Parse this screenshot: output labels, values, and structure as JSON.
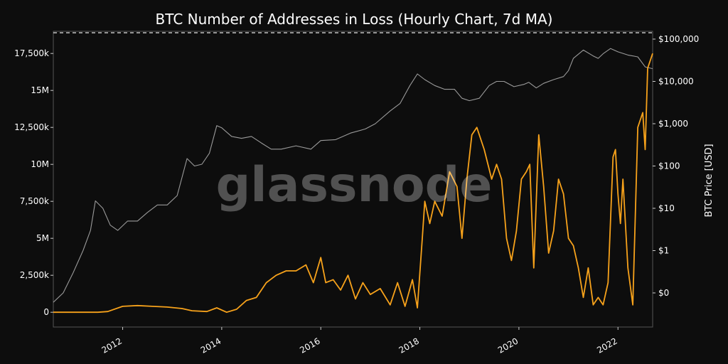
{
  "chart_data": {
    "type": "line",
    "title": "BTC Number of Addresses in Loss (Hourly Chart, 7d MA)",
    "watermark": "glassnode",
    "x_ticks": [
      "2012",
      "2014",
      "2016",
      "2018",
      "2020",
      "2022"
    ],
    "x_range": [
      2010.6,
      2022.7
    ],
    "y_left": {
      "label": "",
      "range": [
        -1000000,
        19000000
      ],
      "ticks": [
        0,
        2500000,
        5000000,
        7500000,
        10000000,
        12500000,
        15000000,
        17500000
      ],
      "tick_labels": [
        "0",
        "2,500k",
        "5M",
        "7,500k",
        "10M",
        "12,500k",
        "15M",
        "17,500k"
      ]
    },
    "y_right": {
      "label": "BTC Price [USD]",
      "scale": "log",
      "ticks": [
        0.1,
        1,
        10,
        100,
        1000,
        10000,
        100000
      ],
      "tick_labels": [
        "$0",
        "$1",
        "$10",
        "$100",
        "$1,000",
        "$10,000",
        "$100,000"
      ]
    },
    "reference_line": {
      "value": 18900000,
      "axis": "left",
      "style": "dashed",
      "color": "#ffffff"
    },
    "grid": false,
    "series": [
      {
        "axis": "left",
        "color": "#f7a21b",
        "x": [
          2010.6,
          2011.0,
          2011.3,
          2011.5,
          2011.7,
          2012.0,
          2012.3,
          2012.6,
          2012.9,
          2013.2,
          2013.4,
          2013.7,
          2013.9,
          2014.1,
          2014.3,
          2014.5,
          2014.7,
          2014.9,
          2015.1,
          2015.3,
          2015.5,
          2015.7,
          2015.85,
          2016.0,
          2016.1,
          2016.25,
          2016.4,
          2016.55,
          2016.7,
          2016.85,
          2017.0,
          2017.2,
          2017.4,
          2017.55,
          2017.7,
          2017.85,
          2017.95,
          2018.05,
          2018.1,
          2018.2,
          2018.3,
          2018.45,
          2018.6,
          2018.75,
          2018.85,
          2018.95,
          2019.05,
          2019.15,
          2019.3,
          2019.45,
          2019.55,
          2019.65,
          2019.75,
          2019.85,
          2019.95,
          2020.05,
          2020.15,
          2020.22,
          2020.3,
          2020.4,
          2020.5,
          2020.6,
          2020.7,
          2020.8,
          2020.9,
          2021.0,
          2021.1,
          2021.2,
          2021.3,
          2021.4,
          2021.5,
          2021.6,
          2021.7,
          2021.8,
          2021.9,
          2021.95,
          2022.0,
          2022.05,
          2022.1,
          2022.2,
          2022.3,
          2022.4,
          2022.5,
          2022.55,
          2022.6,
          2022.7
        ],
        "values": [
          0,
          0,
          0,
          0,
          50000,
          400000,
          450000,
          400000,
          350000,
          250000,
          100000,
          50000,
          300000,
          0,
          200000,
          800000,
          1000000,
          2000000,
          2500000,
          2800000,
          2800000,
          3200000,
          2000000,
          3700000,
          2000000,
          2200000,
          1500000,
          2500000,
          900000,
          2000000,
          1200000,
          1600000,
          500000,
          2000000,
          400000,
          2200000,
          300000,
          5000000,
          7500000,
          6000000,
          7500000,
          6500000,
          9500000,
          8500000,
          5000000,
          9000000,
          12000000,
          12500000,
          11000000,
          9000000,
          10000000,
          9000000,
          5000000,
          3500000,
          5500000,
          9000000,
          9500000,
          10000000,
          3000000,
          12000000,
          8500000,
          4000000,
          5500000,
          9000000,
          8000000,
          5000000,
          4500000,
          3000000,
          1000000,
          3000000,
          500000,
          1000000,
          500000,
          2000000,
          10500000,
          11000000,
          8000000,
          6000000,
          9000000,
          3000000,
          500000,
          12500000,
          13500000,
          11000000,
          16500000,
          17500000
        ]
      },
      {
        "axis": "right",
        "color": "#9a9a9a",
        "x": [
          2010.6,
          2010.8,
          2011.0,
          2011.2,
          2011.35,
          2011.45,
          2011.6,
          2011.75,
          2011.9,
          2012.1,
          2012.3,
          2012.5,
          2012.7,
          2012.9,
          2013.1,
          2013.3,
          2013.45,
          2013.6,
          2013.75,
          2013.9,
          2014.0,
          2014.2,
          2014.4,
          2014.6,
          2014.8,
          2015.0,
          2015.2,
          2015.5,
          2015.8,
          2016.0,
          2016.3,
          2016.6,
          2016.9,
          2017.1,
          2017.4,
          2017.6,
          2017.8,
          2017.95,
          2018.1,
          2018.3,
          2018.5,
          2018.7,
          2018.85,
          2019.0,
          2019.2,
          2019.4,
          2019.55,
          2019.7,
          2019.9,
          2020.1,
          2020.2,
          2020.35,
          2020.5,
          2020.7,
          2020.9,
          2021.0,
          2021.1,
          2021.3,
          2021.5,
          2021.6,
          2021.7,
          2021.85,
          2022.0,
          2022.2,
          2022.4,
          2022.55,
          2022.7
        ],
        "values": [
          0.06,
          0.1,
          0.3,
          1,
          3,
          15,
          10,
          4,
          3,
          5,
          5,
          8,
          12,
          12,
          20,
          150,
          100,
          110,
          200,
          900,
          800,
          500,
          450,
          500,
          350,
          250,
          250,
          300,
          250,
          400,
          420,
          600,
          750,
          1000,
          2000,
          3000,
          8000,
          15000,
          11000,
          8000,
          6500,
          6500,
          4000,
          3500,
          4000,
          8000,
          10000,
          10000,
          7500,
          8500,
          9500,
          7000,
          9000,
          11000,
          13000,
          18000,
          35000,
          55000,
          40000,
          35000,
          45000,
          60000,
          50000,
          42000,
          38000,
          22000,
          20000
        ]
      }
    ]
  }
}
